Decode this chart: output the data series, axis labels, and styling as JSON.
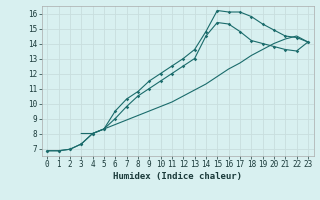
{
  "bg_color": "#d8f0f0",
  "grid_color": "#c8dede",
  "line_color": "#1a6b6b",
  "xlabel": "Humidex (Indice chaleur)",
  "xlabel_fontsize": 6.5,
  "tick_fontsize": 5.5,
  "xlim": [
    -0.5,
    23.5
  ],
  "ylim": [
    6.5,
    16.5
  ],
  "yticks": [
    7,
    8,
    9,
    10,
    11,
    12,
    13,
    14,
    15,
    16
  ],
  "xticks": [
    0,
    1,
    2,
    3,
    4,
    5,
    6,
    7,
    8,
    9,
    10,
    11,
    12,
    13,
    14,
    15,
    16,
    17,
    18,
    19,
    20,
    21,
    22,
    23
  ],
  "curve1_x": [
    0,
    1,
    2,
    3,
    4,
    5,
    6,
    7,
    8,
    9,
    10,
    11,
    12,
    13,
    14,
    15,
    16,
    17,
    18,
    19,
    20,
    21,
    22,
    23
  ],
  "curve1_y": [
    6.85,
    6.85,
    6.95,
    7.3,
    8.0,
    8.3,
    9.5,
    10.3,
    10.8,
    11.5,
    12.0,
    12.5,
    13.0,
    13.6,
    14.8,
    16.2,
    16.1,
    16.1,
    15.8,
    15.3,
    14.9,
    14.5,
    14.4,
    14.1
  ],
  "curve2_x": [
    0,
    1,
    2,
    3,
    4,
    5,
    6,
    7,
    8,
    9,
    10,
    11,
    12,
    13,
    14,
    15,
    16,
    17,
    18,
    19,
    20,
    21,
    22,
    23
  ],
  "curve2_y": [
    6.85,
    6.85,
    6.95,
    7.3,
    8.0,
    8.3,
    9.0,
    9.8,
    10.5,
    11.0,
    11.5,
    12.0,
    12.5,
    13.0,
    14.5,
    15.4,
    15.3,
    14.8,
    14.2,
    14.0,
    13.8,
    13.6,
    13.5,
    14.1
  ],
  "curve3_x": [
    3,
    4,
    5,
    6,
    7,
    8,
    9,
    10,
    11,
    12,
    13,
    14,
    15,
    16,
    17,
    18,
    19,
    20,
    21,
    22,
    23
  ],
  "curve3_y": [
    8.0,
    8.0,
    8.3,
    8.6,
    8.9,
    9.2,
    9.5,
    9.8,
    10.1,
    10.5,
    10.9,
    11.3,
    11.8,
    12.3,
    12.7,
    13.2,
    13.6,
    14.0,
    14.3,
    14.5,
    14.1
  ],
  "markersize": 1.8,
  "linewidth": 0.8
}
